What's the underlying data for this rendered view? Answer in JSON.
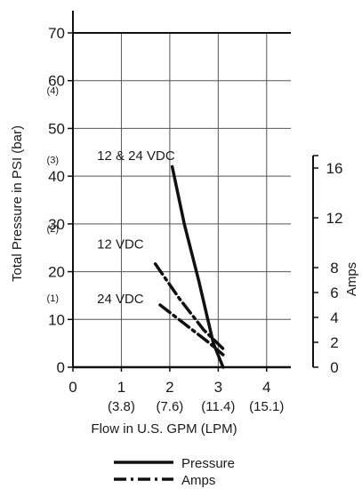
{
  "chart_data": {
    "type": "line",
    "xlabel": "Flow in U.S. GPM (LPM)",
    "ylabel": "Total Pressure in PSI (bar)",
    "y2label": "Amps",
    "xlim": [
      0,
      4.5
    ],
    "ylim": [
      0,
      70
    ],
    "y2lim": [
      0,
      17
    ],
    "grid": true,
    "x_ticks": [
      {
        "value": 0,
        "label": "0",
        "sub": ""
      },
      {
        "value": 1,
        "label": "1",
        "sub": "(3.8)"
      },
      {
        "value": 2,
        "label": "2",
        "sub": "(7.6)"
      },
      {
        "value": 3,
        "label": "3",
        "sub": "(11.4)"
      },
      {
        "value": 4,
        "label": "4",
        "sub": "(15.1)"
      }
    ],
    "y_ticks": [
      {
        "value": 0,
        "label": "0"
      },
      {
        "value": 10,
        "label": "10"
      },
      {
        "value": 20,
        "label": "20"
      },
      {
        "value": 30,
        "label": "30"
      },
      {
        "value": 40,
        "label": "40"
      },
      {
        "value": 50,
        "label": "50"
      },
      {
        "value": 60,
        "label": "60"
      },
      {
        "value": 70,
        "label": "70"
      }
    ],
    "bar_ticks": [
      {
        "value": 14.5,
        "label": "(1)"
      },
      {
        "value": 29,
        "label": "(2)"
      },
      {
        "value": 43.5,
        "label": "(3)"
      },
      {
        "value": 58,
        "label": "(4)"
      }
    ],
    "y2_ticks": [
      {
        "value": 0,
        "label": "0"
      },
      {
        "value": 2,
        "label": "2"
      },
      {
        "value": 4,
        "label": "4"
      },
      {
        "value": 6,
        "label": "6"
      },
      {
        "value": 8,
        "label": "8"
      },
      {
        "value": 12,
        "label": "12"
      },
      {
        "value": 16,
        "label": "16"
      }
    ],
    "annotations": [
      {
        "text": "12 & 24 VDC",
        "x": 1.6,
        "y": 44.5
      },
      {
        "text": "12 VDC",
        "x": 1.6,
        "y": 26
      },
      {
        "text": "24 VDC",
        "x": 1.6,
        "y": 14.5
      }
    ],
    "series": [
      {
        "name": "Pressure",
        "axis": "left",
        "style": "solid",
        "color": "#111111",
        "x": [
          2.05,
          2.3,
          2.6,
          2.9,
          3.1
        ],
        "y": [
          42,
          30,
          18,
          5,
          0
        ]
      },
      {
        "name": "Amps",
        "axis": "right",
        "style": "dashdot",
        "color": "#111111",
        "x": [
          1.7,
          2.2,
          2.7,
          3.15
        ],
        "y": [
          8.3,
          5.5,
          3.0,
          1.3
        ]
      },
      {
        "name": "Amps",
        "axis": "right",
        "style": "dashdot",
        "color": "#111111",
        "x": [
          1.8,
          2.3,
          2.8,
          3.1
        ],
        "y": [
          5.0,
          3.5,
          2.0,
          1.0
        ]
      }
    ],
    "legend": [
      {
        "label": "Pressure",
        "style": "solid"
      },
      {
        "label": "Amps",
        "style": "dashdot"
      }
    ],
    "legend_position": "bottom"
  }
}
